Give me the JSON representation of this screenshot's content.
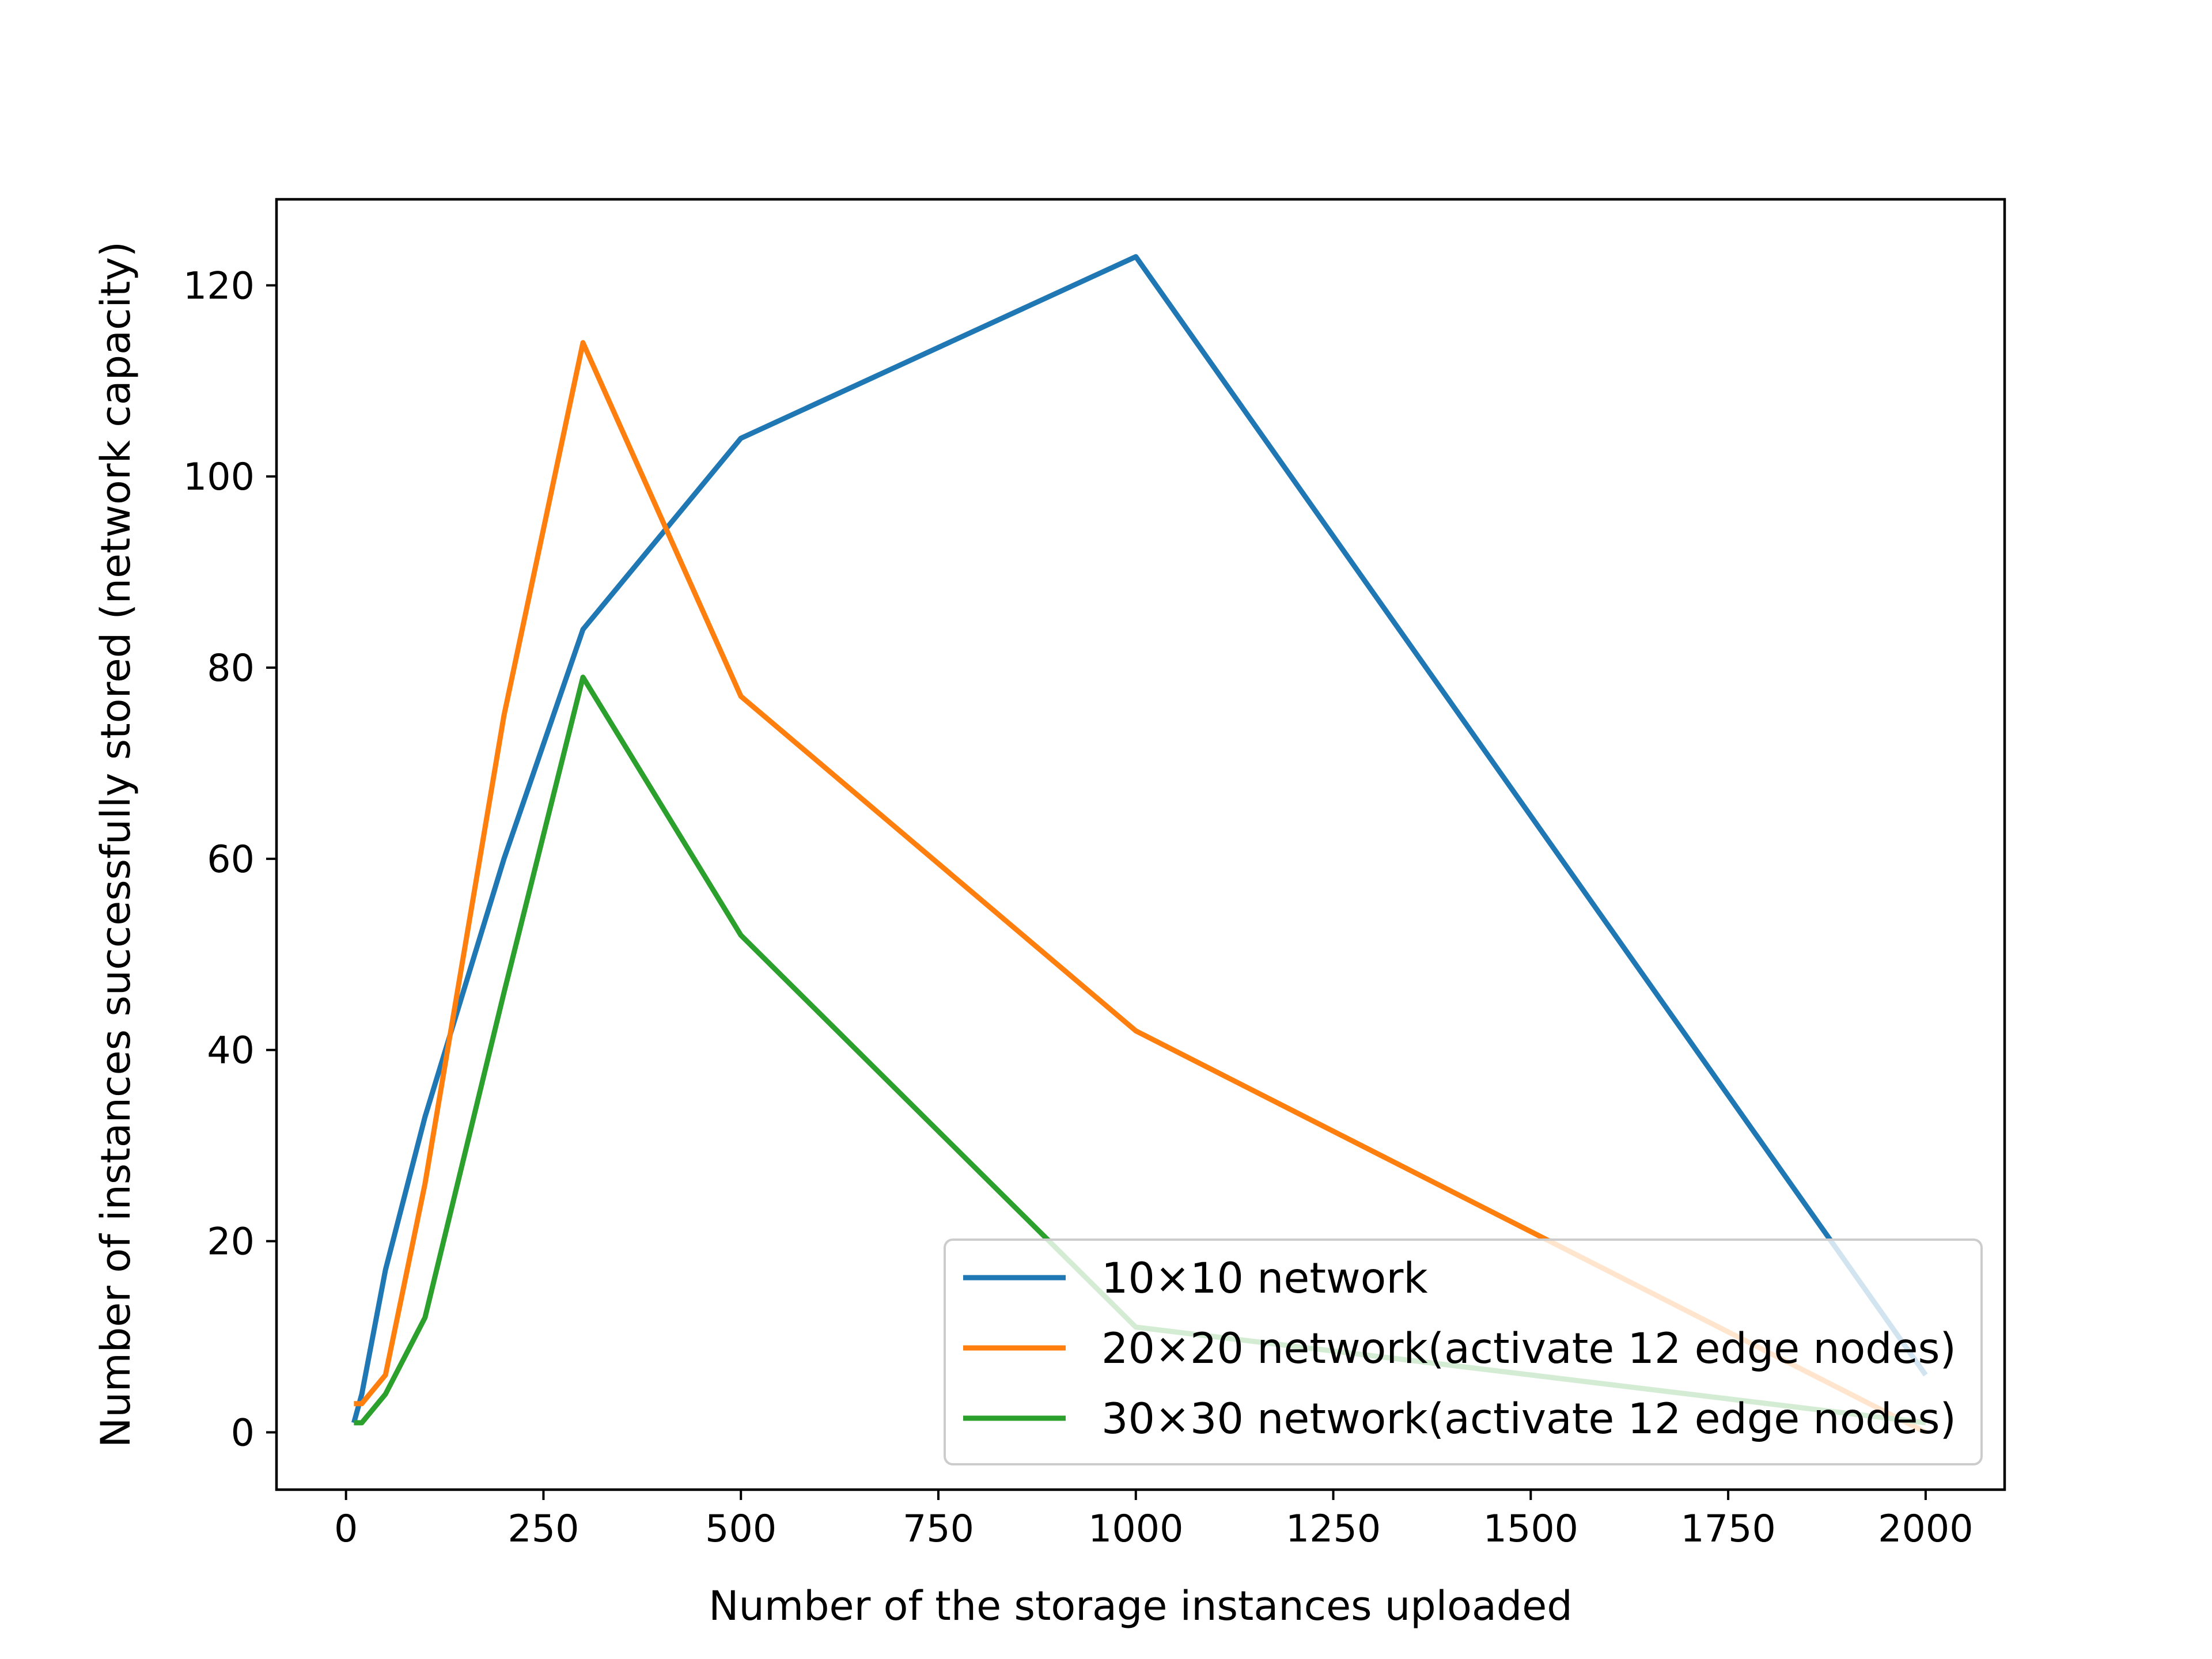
{
  "chart_data": {
    "type": "line",
    "title": "",
    "xlabel": "Number of the storage instances uploaded",
    "ylabel": "Number of instances successfully stored (network capacity)",
    "xlim": [
      -88,
      2100
    ],
    "ylim": [
      -6,
      129
    ],
    "x_ticks": [
      0,
      250,
      500,
      750,
      1000,
      1250,
      1500,
      1750,
      2000
    ],
    "y_ticks": [
      0,
      20,
      40,
      60,
      80,
      100,
      120
    ],
    "grid": false,
    "legend_position": "lower-right",
    "series": [
      {
        "name": "10×10 network",
        "color": "#1f77b4",
        "x": [
          10,
          20,
          50,
          100,
          200,
          300,
          500,
          1000,
          2000
        ],
        "y": [
          1,
          4,
          17,
          33,
          60,
          84,
          104,
          123,
          6
        ]
      },
      {
        "name": "20×20 network(activate 12 edge nodes)",
        "color": "#ff7f0e",
        "x": [
          10,
          20,
          50,
          100,
          200,
          300,
          500,
          1000,
          2000
        ],
        "y": [
          3,
          3,
          6,
          26,
          75,
          114,
          77,
          42,
          0
        ]
      },
      {
        "name": "30×30 network(activate 12 edge nodes)",
        "color": "#2ca02c",
        "x": [
          10,
          20,
          50,
          100,
          200,
          300,
          500,
          1000,
          2000
        ],
        "y": [
          1,
          1,
          4,
          12,
          46,
          79,
          52,
          11,
          1
        ]
      }
    ]
  }
}
